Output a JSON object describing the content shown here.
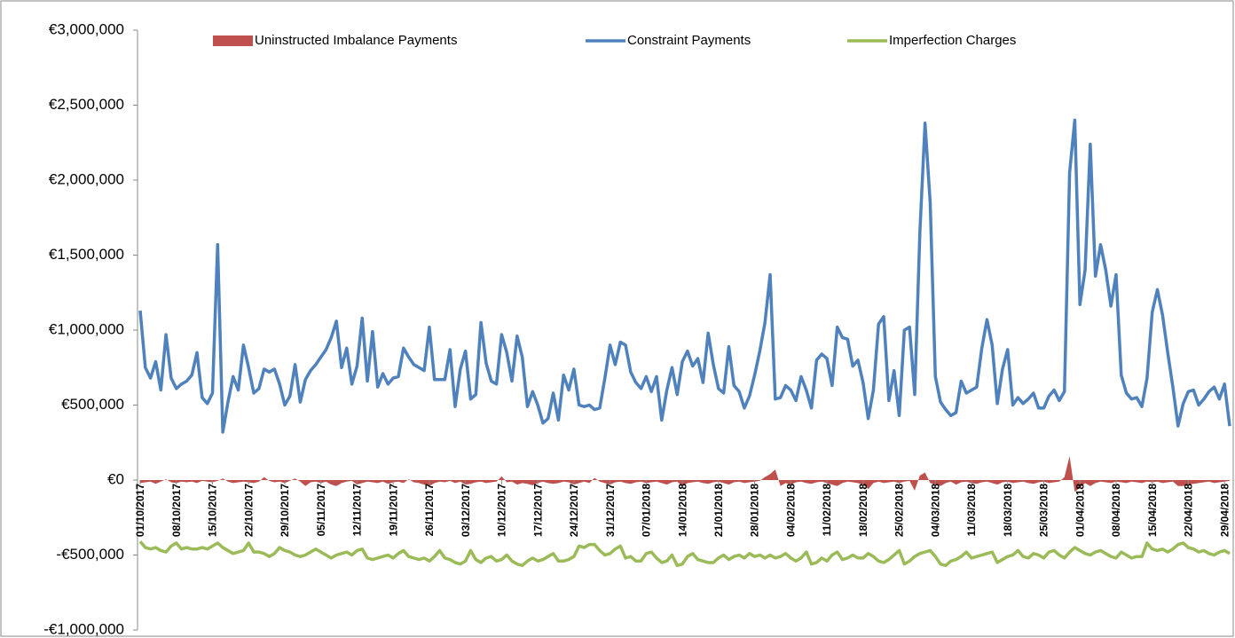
{
  "chart_data": {
    "type": "line",
    "categories": [
      "01/10/2017",
      null,
      null,
      null,
      null,
      null,
      null,
      "08/10/2017",
      null,
      null,
      null,
      null,
      null,
      null,
      "15/10/2017",
      null,
      null,
      null,
      null,
      null,
      null,
      "22/10/2017",
      null,
      null,
      null,
      null,
      null,
      null,
      "29/10/2017",
      null,
      null,
      null,
      null,
      null,
      null,
      "05/11/2017",
      null,
      null,
      null,
      null,
      null,
      null,
      "12/11/2017",
      null,
      null,
      null,
      null,
      null,
      null,
      "19/11/2017",
      null,
      null,
      null,
      null,
      null,
      null,
      "26/11/2017",
      null,
      null,
      null,
      null,
      null,
      null,
      "03/12/2017",
      null,
      null,
      null,
      null,
      null,
      null,
      "10/12/2017",
      null,
      null,
      null,
      null,
      null,
      null,
      "17/12/2017",
      null,
      null,
      null,
      null,
      null,
      null,
      "24/12/2017",
      null,
      null,
      null,
      null,
      null,
      null,
      "31/12/2017",
      null,
      null,
      null,
      null,
      null,
      null,
      "07/01/2018",
      null,
      null,
      null,
      null,
      null,
      null,
      "14/01/2018",
      null,
      null,
      null,
      null,
      null,
      null,
      "21/01/2018",
      null,
      null,
      null,
      null,
      null,
      null,
      "28/01/2018",
      null,
      null,
      null,
      null,
      null,
      null,
      "04/02/2018",
      null,
      null,
      null,
      null,
      null,
      null,
      "11/02/2018",
      null,
      null,
      null,
      null,
      null,
      null,
      "18/02/2018",
      null,
      null,
      null,
      null,
      null,
      null,
      "25/02/2018",
      null,
      null,
      null,
      null,
      null,
      null,
      "04/03/2018",
      null,
      null,
      null,
      null,
      null,
      null,
      "11/03/2018",
      null,
      null,
      null,
      null,
      null,
      null,
      "18/03/2018",
      null,
      null,
      null,
      null,
      null,
      null,
      "25/03/2018",
      null,
      null,
      null,
      null,
      null,
      null,
      "01/04/2018",
      null,
      null,
      null,
      null,
      null,
      null,
      "08/04/2018",
      null,
      null,
      null,
      null,
      null,
      null,
      "15/04/2018",
      null,
      null,
      null,
      null,
      null,
      null,
      "22/04/2018",
      null,
      null,
      null,
      null,
      null,
      null,
      "29/04/2018",
      null
    ],
    "series": [
      {
        "name": "Uninstructed Imbalance Payments",
        "color": "#c0504d",
        "style": "area",
        "values": [
          -20000,
          -15000,
          -10000,
          -25000,
          -10000,
          5000,
          -15000,
          -20000,
          -10000,
          -15000,
          -10000,
          -20000,
          -5000,
          -10000,
          -15000,
          -5000,
          10000,
          -10000,
          -20000,
          -15000,
          -10000,
          -15000,
          -20000,
          -10000,
          20000,
          -5000,
          -15000,
          -10000,
          -20000,
          -5000,
          10000,
          -10000,
          -40000,
          -15000,
          -10000,
          -20000,
          -10000,
          -30000,
          -40000,
          -20000,
          -10000,
          -5000,
          -30000,
          -20000,
          -10000,
          -15000,
          -20000,
          -10000,
          -25000,
          -15000,
          -10000,
          -20000,
          5000,
          -15000,
          -20000,
          -30000,
          -40000,
          -20000,
          -10000,
          -15000,
          -5000,
          -20000,
          -10000,
          -30000,
          -25000,
          -15000,
          -10000,
          -20000,
          -15000,
          -10000,
          25000,
          -15000,
          -10000,
          -30000,
          -20000,
          -25000,
          -35000,
          -20000,
          -10000,
          -20000,
          -25000,
          -20000,
          -10000,
          -15000,
          -30000,
          -20000,
          -10000,
          -20000,
          15000,
          -10000,
          -20000,
          -30000,
          -15000,
          -10000,
          -20000,
          -25000,
          -15000,
          -10000,
          -20000,
          -15000,
          -10000,
          -20000,
          -30000,
          -15000,
          -10000,
          -40000,
          -20000,
          -15000,
          -10000,
          -20000,
          -25000,
          -15000,
          -10000,
          -20000,
          -30000,
          -15000,
          -10000,
          -20000,
          -15000,
          -10000,
          -5000,
          20000,
          40000,
          70000,
          -40000,
          -20000,
          -30000,
          -15000,
          -10000,
          -20000,
          -25000,
          -15000,
          -10000,
          -20000,
          -30000,
          -40000,
          -20000,
          -10000,
          -15000,
          -20000,
          -30000,
          -60000,
          -20000,
          -10000,
          -20000,
          -15000,
          -10000,
          -20000,
          -10000,
          -5000,
          -70000,
          30000,
          50000,
          -20000,
          -30000,
          -40000,
          -20000,
          -10000,
          -30000,
          -15000,
          -10000,
          -20000,
          -25000,
          -15000,
          -10000,
          -20000,
          -30000,
          -15000,
          -10000,
          -20000,
          -15000,
          -10000,
          -20000,
          -25000,
          -15000,
          -10000,
          -20000,
          -15000,
          -10000,
          20000,
          160000,
          -80000,
          -50000,
          -20000,
          -40000,
          -20000,
          -10000,
          -15000,
          -20000,
          -10000,
          -15000,
          -20000,
          -10000,
          -15000,
          -20000,
          -10000,
          -15000,
          -10000,
          -20000,
          -15000,
          -10000,
          -40000,
          -40000,
          -30000,
          -25000,
          -20000,
          -15000,
          -10000,
          -20000,
          -15000,
          -10000,
          -5000
        ]
      },
      {
        "name": "Constraint Payments",
        "color": "#4f81bd",
        "style": "line",
        "values": [
          1130000,
          750000,
          680000,
          790000,
          600000,
          970000,
          680000,
          610000,
          640000,
          660000,
          700000,
          850000,
          550000,
          510000,
          580000,
          1570000,
          320000,
          520000,
          690000,
          600000,
          900000,
          750000,
          580000,
          610000,
          740000,
          720000,
          740000,
          640000,
          500000,
          560000,
          770000,
          520000,
          670000,
          730000,
          770000,
          820000,
          870000,
          950000,
          1060000,
          750000,
          880000,
          640000,
          760000,
          1080000,
          660000,
          990000,
          620000,
          710000,
          640000,
          680000,
          690000,
          880000,
          820000,
          770000,
          750000,
          730000,
          1020000,
          670000,
          670000,
          670000,
          870000,
          490000,
          740000,
          860000,
          540000,
          570000,
          1050000,
          780000,
          660000,
          640000,
          970000,
          850000,
          660000,
          960000,
          820000,
          490000,
          590000,
          500000,
          380000,
          410000,
          580000,
          400000,
          700000,
          600000,
          740000,
          500000,
          490000,
          500000,
          470000,
          480000,
          680000,
          900000,
          770000,
          920000,
          900000,
          720000,
          650000,
          610000,
          690000,
          590000,
          690000,
          400000,
          600000,
          750000,
          570000,
          790000,
          860000,
          760000,
          810000,
          650000,
          980000,
          770000,
          610000,
          580000,
          890000,
          630000,
          590000,
          480000,
          560000,
          700000,
          860000,
          1050000,
          1370000,
          540000,
          550000,
          630000,
          600000,
          530000,
          690000,
          600000,
          480000,
          800000,
          840000,
          810000,
          630000,
          1020000,
          950000,
          940000,
          760000,
          800000,
          650000,
          410000,
          600000,
          1040000,
          1090000,
          530000,
          730000,
          430000,
          1000000,
          1020000,
          570000,
          1650000,
          2380000,
          1850000,
          690000,
          520000,
          470000,
          430000,
          450000,
          660000,
          580000,
          600000,
          620000,
          880000,
          1070000,
          900000,
          510000,
          740000,
          870000,
          500000,
          550000,
          510000,
          540000,
          580000,
          480000,
          480000,
          560000,
          600000,
          530000,
          590000,
          2050000,
          2400000,
          1170000,
          1400000,
          2240000,
          1360000,
          1570000,
          1400000,
          1160000,
          1370000,
          700000,
          580000,
          540000,
          550000,
          490000,
          680000,
          1120000,
          1270000,
          1100000,
          850000,
          620000,
          360000,
          510000,
          590000,
          600000,
          500000,
          540000,
          590000,
          620000,
          540000,
          640000,
          360000
        ]
      },
      {
        "name": "Imperfection Charges",
        "color": "#9bbb59",
        "style": "line",
        "values": [
          -410000,
          -450000,
          -460000,
          -450000,
          -470000,
          -480000,
          -440000,
          -420000,
          -460000,
          -450000,
          -460000,
          -460000,
          -450000,
          -460000,
          -440000,
          -420000,
          -450000,
          -470000,
          -490000,
          -480000,
          -470000,
          -420000,
          -480000,
          -480000,
          -490000,
          -510000,
          -490000,
          -450000,
          -470000,
          -480000,
          -500000,
          -510000,
          -500000,
          -480000,
          -460000,
          -480000,
          -500000,
          -520000,
          -500000,
          -490000,
          -480000,
          -500000,
          -470000,
          -460000,
          -520000,
          -530000,
          -520000,
          -510000,
          -500000,
          -520000,
          -490000,
          -470000,
          -510000,
          -520000,
          -530000,
          -520000,
          -540000,
          -510000,
          -470000,
          -520000,
          -530000,
          -550000,
          -560000,
          -540000,
          -470000,
          -530000,
          -550000,
          -520000,
          -510000,
          -540000,
          -530000,
          -500000,
          -540000,
          -560000,
          -570000,
          -540000,
          -520000,
          -540000,
          -530000,
          -510000,
          -490000,
          -540000,
          -540000,
          -530000,
          -510000,
          -440000,
          -450000,
          -430000,
          -430000,
          -470000,
          -500000,
          -490000,
          -460000,
          -440000,
          -520000,
          -510000,
          -540000,
          -540000,
          -490000,
          -480000,
          -520000,
          -550000,
          -540000,
          -500000,
          -570000,
          -560000,
          -510000,
          -490000,
          -530000,
          -540000,
          -550000,
          -550000,
          -520000,
          -500000,
          -530000,
          -510000,
          -500000,
          -520000,
          -490000,
          -510000,
          -500000,
          -520000,
          -500000,
          -520000,
          -510000,
          -490000,
          -520000,
          -540000,
          -520000,
          -480000,
          -560000,
          -550000,
          -520000,
          -540000,
          -500000,
          -480000,
          -530000,
          -520000,
          -500000,
          -520000,
          -520000,
          -490000,
          -510000,
          -540000,
          -550000,
          -530000,
          -500000,
          -470000,
          -560000,
          -540000,
          -510000,
          -490000,
          -480000,
          -470000,
          -510000,
          -560000,
          -570000,
          -540000,
          -530000,
          -510000,
          -480000,
          -520000,
          -510000,
          -500000,
          -490000,
          -480000,
          -550000,
          -530000,
          -510000,
          -500000,
          -470000,
          -510000,
          -520000,
          -490000,
          -500000,
          -520000,
          -480000,
          -470000,
          -500000,
          -520000,
          -480000,
          -450000,
          -470000,
          -490000,
          -500000,
          -480000,
          -470000,
          -490000,
          -510000,
          -520000,
          -480000,
          -500000,
          -520000,
          -510000,
          -510000,
          -420000,
          -460000,
          -470000,
          -460000,
          -480000,
          -460000,
          -430000,
          -420000,
          -450000,
          -460000,
          -480000,
          -470000,
          -490000,
          -500000,
          -480000,
          -470000,
          -490000
        ]
      }
    ],
    "ylim": [
      -1000000,
      3000000
    ],
    "yticks": [
      {
        "value": -1000000,
        "label": "-€1,000,000"
      },
      {
        "value": -500000,
        "label": "-€500,000"
      },
      {
        "value": 0,
        "label": "€0"
      },
      {
        "value": 500000,
        "label": "€500,000"
      },
      {
        "value": 1000000,
        "label": "€1,000,000"
      },
      {
        "value": 1500000,
        "label": "€1,500,000"
      },
      {
        "value": 2000000,
        "label": "€2,000,000"
      },
      {
        "value": 2500000,
        "label": "€2,500,000"
      },
      {
        "value": 3000000,
        "label": "€3,000,000"
      }
    ],
    "grid": false
  }
}
